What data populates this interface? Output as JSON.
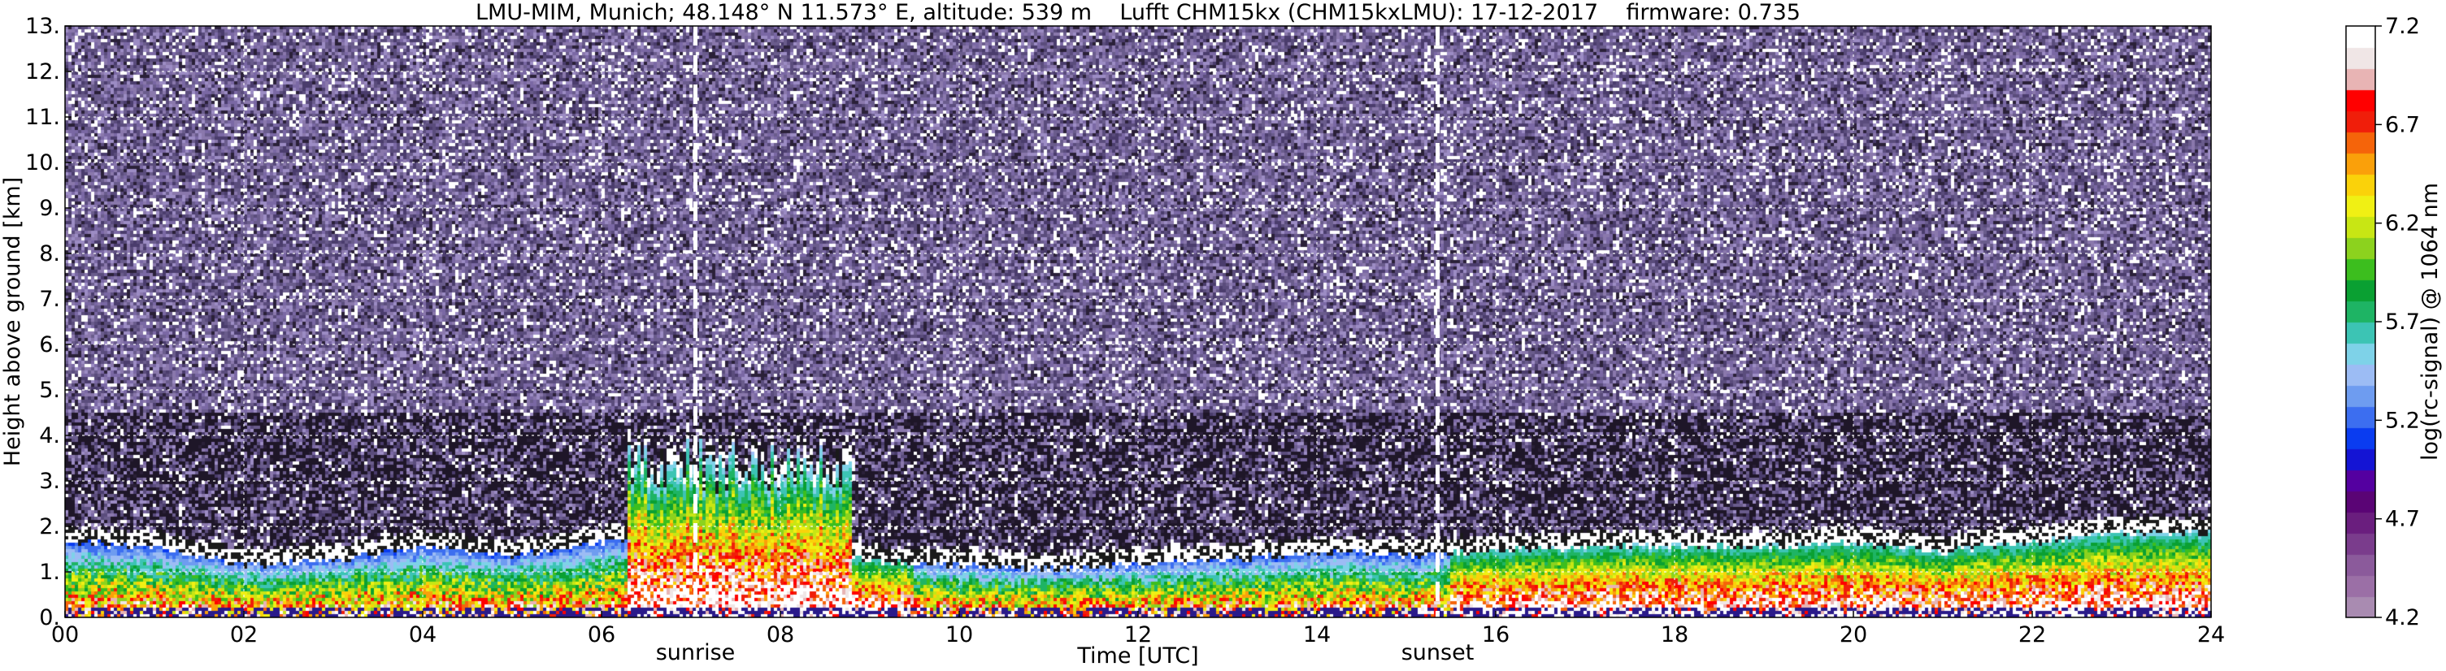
{
  "chart_data": {
    "type": "heatmap",
    "title": "LMU-MIM, Munich; 48.148° N 11.573° E, altitude: 539 m    Lufft CHM15kx (CHM15kxLMU): 17-12-2017    firmware: 0.735",
    "xlabel": "Time [UTC]",
    "ylabel": "Height above ground [km]",
    "xlim": [
      0,
      24
    ],
    "ylim": [
      0,
      13
    ],
    "x_ticks": [
      "00",
      "02",
      "04",
      "06",
      "08",
      "10",
      "12",
      "14",
      "16",
      "18",
      "20",
      "22",
      "24"
    ],
    "y_ticks": [
      "0.",
      "1.",
      "2.",
      "3.",
      "4.",
      "5.",
      "6.",
      "7.",
      "8.",
      "9.",
      "10.",
      "11.",
      "12.",
      "13."
    ],
    "grid": true,
    "colorbar": {
      "label": "log(rc-signal) @ 1064 nm",
      "range": [
        4.2,
        7.2
      ],
      "ticks": [
        "4.2",
        "4.7",
        "5.2",
        "5.7",
        "6.2",
        "6.7",
        "7.2"
      ],
      "colors": [
        "#a98bb1",
        "#9b6fa6",
        "#8b5a9b",
        "#7a3c8c",
        "#6a1e7e",
        "#5a0475",
        "#5400a0",
        "#1414d4",
        "#0a3cf0",
        "#3c6ef0",
        "#6e9cf0",
        "#9cbcf4",
        "#7ed2e8",
        "#3cc4b4",
        "#1eb464",
        "#0aa032",
        "#3cbe1e",
        "#8cd21e",
        "#c8e614",
        "#f0f014",
        "#fad20a",
        "#faa00a",
        "#f5640a",
        "#f01e0a",
        "#ff0000",
        "#e8b4b4",
        "#f0e6e6",
        "#ffffff"
      ]
    },
    "annotations": [
      {
        "text": "sunrise",
        "x": 7.05
      },
      {
        "text": "sunset",
        "x": 15.35
      }
    ],
    "features": {
      "boundary_layer_top_km": [
        [
          0,
          1.8
        ],
        [
          1,
          1.7
        ],
        [
          2,
          1.3
        ],
        [
          3,
          1.4
        ],
        [
          4,
          1.7
        ],
        [
          5,
          1.5
        ],
        [
          6,
          1.8
        ],
        [
          7,
          1.9
        ],
        [
          8,
          1.5
        ],
        [
          9,
          1.4
        ],
        [
          10,
          1.3
        ],
        [
          11,
          1.2
        ],
        [
          12,
          1.3
        ],
        [
          13,
          1.4
        ],
        [
          14,
          1.6
        ],
        [
          15,
          1.5
        ],
        [
          16,
          1.6
        ],
        [
          17,
          1.7
        ],
        [
          18,
          1.7
        ],
        [
          19,
          1.7
        ],
        [
          20,
          1.8
        ],
        [
          21,
          1.6
        ],
        [
          22,
          1.8
        ],
        [
          23,
          2.0
        ],
        [
          24,
          2.0
        ]
      ],
      "elevated_layer": {
        "x_start": 6.3,
        "x_end": 8.8,
        "top_km": 4.1
      },
      "noise_colors": [
        "#6a5c8c",
        "#4a3c6c",
        "#8a78ac",
        "#ffffff",
        "#2a2038",
        "#9c8cc4",
        "#5a4c7c",
        "#7a68a4"
      ]
    }
  }
}
